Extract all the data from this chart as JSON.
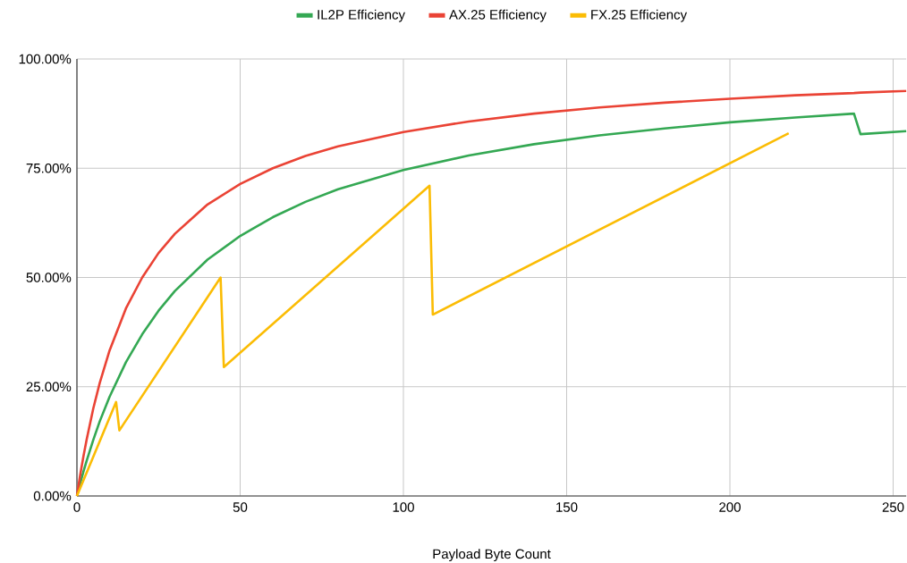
{
  "chart_data": {
    "type": "line",
    "xlabel": "Payload Byte Count",
    "x": [
      0,
      1,
      2,
      3,
      5,
      7,
      10,
      15,
      20,
      25,
      30,
      40,
      50,
      60,
      70,
      80,
      100,
      120,
      140,
      160,
      180,
      200,
      220,
      238,
      240,
      254
    ],
    "series": [
      {
        "name": "IL2P Efficiency",
        "color": "#34a853",
        "values": [
          0,
          2.9,
          5.6,
          8.1,
          12.8,
          17.1,
          22.7,
          30.6,
          37,
          42.4,
          46.9,
          54.1,
          59.5,
          63.8,
          67.3,
          70.2,
          74.6,
          77.9,
          80.5,
          82.5,
          84.1,
          85.5,
          86.6,
          87.5,
          82.8,
          83.5
        ]
      },
      {
        "name": "AX.25 Efficiency",
        "color": "#ea4335",
        "values": [
          0,
          4.8,
          9.1,
          13,
          20,
          25.9,
          33.3,
          42.9,
          50,
          55.6,
          60,
          66.7,
          71.4,
          75,
          77.8,
          80,
          83.3,
          85.7,
          87.5,
          88.9,
          90,
          90.9,
          91.7,
          92.2,
          92.3,
          92.7
        ]
      },
      {
        "name": "FX.25 Efficiency",
        "color": "#fbbc04",
        "x": [
          0,
          12,
          13,
          44,
          45,
          108,
          109,
          218
        ],
        "values": [
          0,
          21.5,
          15,
          50,
          29.5,
          71,
          41.5,
          83
        ]
      }
    ],
    "xlim": [
      0,
      254
    ],
    "ylim": [
      0,
      100
    ],
    "xticks": [
      0,
      50,
      100,
      150,
      200,
      250
    ],
    "yticks": [
      {
        "value": 0,
        "label": "0.00%"
      },
      {
        "value": 25,
        "label": "25.00%"
      },
      {
        "value": 50,
        "label": "50.00%"
      },
      {
        "value": 75,
        "label": "75.00%"
      },
      {
        "value": 100,
        "label": "100.00%"
      }
    ],
    "grid": true,
    "legend": "top"
  }
}
